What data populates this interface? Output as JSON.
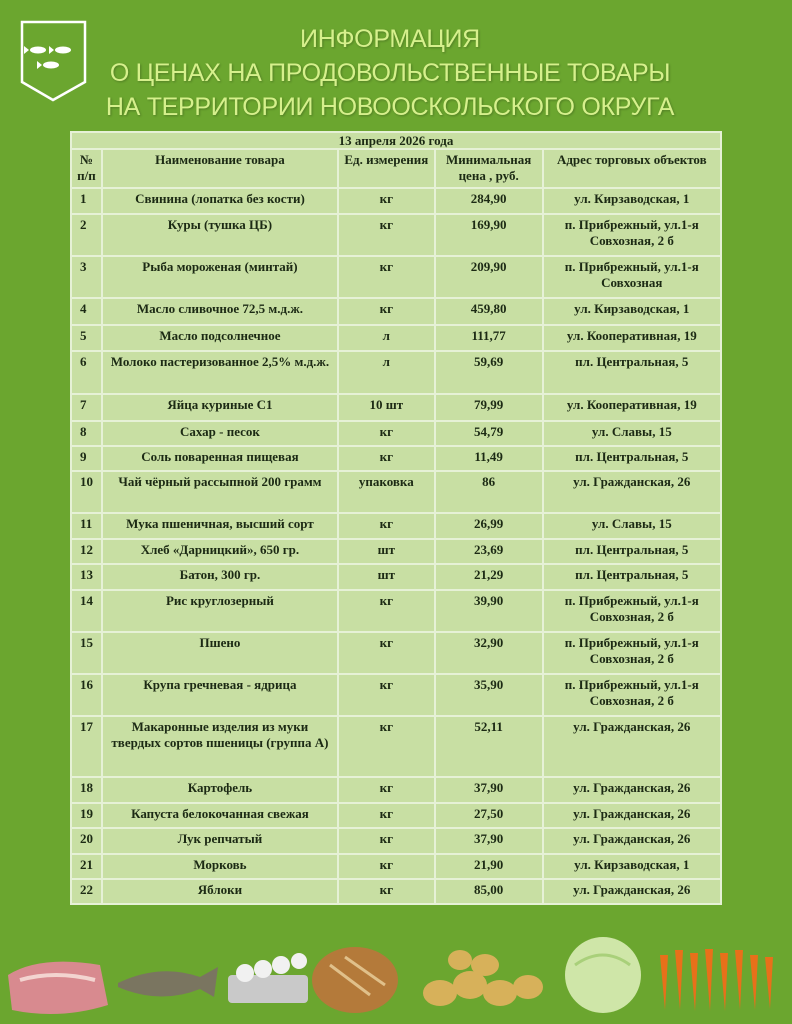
{
  "title": {
    "line1": "ИНФОРМАЦИЯ",
    "line2": "О ЦЕНАХ НА ПРОДОВОЛЬСТВЕННЫЕ ТОВАРЫ",
    "line3": "НА ТЕРРИТОРИИ НОВООСКОЛЬСКОГО ОКРУГА"
  },
  "table": {
    "date": "13 апреля 2026 года",
    "headers": [
      "№ п/п",
      "Наименование товара",
      "Ед. измерения",
      "Минимальная цена , руб.",
      "Адрес торговых объектов"
    ],
    "rows": [
      [
        "1",
        "Свинина (лопатка без кости)",
        "кг",
        "284,90",
        "ул. Кирзаводская, 1"
      ],
      [
        "2",
        "Куры (тушка ЦБ)",
        "кг",
        "169,90",
        "п. Прибрежный, ул.1-я Совхозная, 2 б"
      ],
      [
        "3",
        "Рыба мороженая (минтай)",
        "кг",
        "209,90",
        "п. Прибрежный, ул.1-я Совхозная"
      ],
      [
        "4",
        "Масло сливочное 72,5 м.д.ж.",
        "кг",
        "459,80",
        "ул. Кирзаводская, 1"
      ],
      [
        "5",
        "Масло подсолнечное",
        "л",
        "111,77",
        "ул. Кооперативная, 19"
      ],
      [
        "6",
        "Молоко пастеризованное 2,5% м.д.ж.",
        "л",
        "59,69",
        "пл. Центральная, 5"
      ],
      [
        "7",
        "Яйца куриные С1",
        "10 шт",
        "79,99",
        "ул. Кооперативная, 19"
      ],
      [
        "8",
        "Сахар - песок",
        "кг",
        "54,79",
        "ул. Славы, 15"
      ],
      [
        "9",
        "Соль поваренная пищевая",
        "кг",
        "11,49",
        "пл. Центральная, 5"
      ],
      [
        "10",
        "Чай чёрный рассыпной 200 грамм",
        "упаковка",
        "86",
        "ул. Гражданская, 26"
      ],
      [
        "11",
        "Мука пшеничная, высший сорт",
        "кг",
        "26,99",
        "ул. Славы, 15"
      ],
      [
        "12",
        "Хлеб «Дарницкий», 650 гр.",
        "шт",
        "23,69",
        "пл. Центральная, 5"
      ],
      [
        "13",
        "Батон, 300 гр.",
        "шт",
        "21,29",
        "пл. Центральная, 5"
      ],
      [
        "14",
        "Рис круглозерный",
        "кг",
        "39,90",
        "п. Прибрежный, ул.1-я Совхозная, 2 б"
      ],
      [
        "15",
        "Пшено",
        "кг",
        "32,90",
        "п. Прибрежный, ул.1-я Совхозная, 2 б"
      ],
      [
        "16",
        "Крупа гречневая - ядрица",
        "кг",
        "35,90",
        "п. Прибрежный, ул.1-я Совхозная, 2 б"
      ],
      [
        "17",
        "Макаронные изделия из муки твердых сортов пшеницы (группа А)",
        "кг",
        "52,11",
        "ул. Гражданская, 26"
      ],
      [
        "18",
        "Картофель",
        "кг",
        "37,90",
        "ул. Гражданская, 26"
      ],
      [
        "19",
        "Капуста белокочанная свежая",
        "кг",
        "27,50",
        "ул. Гражданская, 26"
      ],
      [
        "20",
        "Лук репчатый",
        "кг",
        "37,90",
        "ул. Гражданская, 26"
      ],
      [
        "21",
        "Морковь",
        "кг",
        "21,90",
        "ул. Кирзаводская, 1"
      ],
      [
        "22",
        "Яблоки",
        "кг",
        "85,00",
        "ул. Гражданская, 26"
      ]
    ]
  },
  "colors": {
    "background": "#6ba62f",
    "title": "#d6f08c",
    "table": "#c8dfa3"
  }
}
